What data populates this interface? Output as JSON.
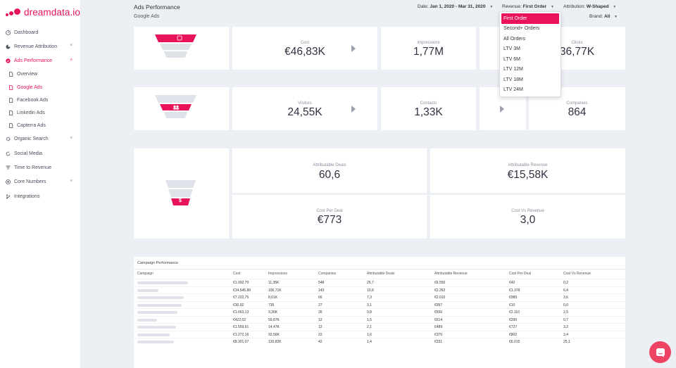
{
  "brand": {
    "name": "dreamdata.io",
    "color": "#e8135b"
  },
  "sidebar": {
    "items": [
      {
        "label": "Dashboard",
        "icon": "gauge-icon",
        "level": 0
      },
      {
        "label": "Revenue Attribution",
        "icon": "pie-icon",
        "level": 0,
        "chevron": "˅"
      },
      {
        "label": "Ads Performance",
        "icon": "check-circle-icon",
        "level": 0,
        "chevron": "˄",
        "active": true
      },
      {
        "label": "Overview",
        "icon": "page-icon",
        "level": 1
      },
      {
        "label": "Google Ads",
        "icon": "page-icon",
        "level": 1,
        "active": true
      },
      {
        "label": "Facebook Ads",
        "icon": "page-icon",
        "level": 1
      },
      {
        "label": "Linkedin Ads",
        "icon": "page-icon",
        "level": 1
      },
      {
        "label": "Capterra Ads",
        "icon": "page-icon",
        "level": 1
      },
      {
        "label": "Organic Search",
        "icon": "gear-icon",
        "level": 0,
        "chevron": "˅"
      },
      {
        "label": "Social Media",
        "icon": "refresh-icon",
        "level": 0
      },
      {
        "label": "Time to Revenue",
        "icon": "filter-icon",
        "level": 0
      },
      {
        "label": "Core Numbers",
        "icon": "target-icon",
        "level": 0,
        "chevron": "˅"
      },
      {
        "label": "Integrations",
        "icon": "branch-icon",
        "level": 0
      }
    ]
  },
  "header": {
    "title": "Ads Performance",
    "subtitle": "Google Ads",
    "date_label": "Date:",
    "date_value": "Jan 1, 2020 - Mar 31, 2020",
    "revenue_label": "Revenue:",
    "revenue_value": "First Order",
    "attribution_label": "Attribution:",
    "attribution_value": "W-Shaped",
    "brand_label": "Brand:",
    "brand_value": "All",
    "caret": "▼"
  },
  "revenue_dropdown": {
    "options": [
      "First Order",
      "Second+ Orders",
      "All Orders",
      "LTV 3M",
      "LTV 6M",
      "LTV 12M",
      "LTV 18M",
      "LTV 24M"
    ],
    "selected": "First Order"
  },
  "funnel1": {
    "cost_label": "Cost",
    "cost_value": "€46,83K",
    "impressions_label": "Impressions",
    "impressions_value": "1,77M",
    "clicks_label": "Clicks",
    "clicks_value": "36,77K"
  },
  "funnel2": {
    "visitors_label": "Visitors",
    "visitors_value": "24,55K",
    "contacts_label": "Contacts",
    "contacts_value": "1,33K",
    "companies_label": "Companies",
    "companies_value": "864"
  },
  "funnel3": {
    "deals_label": "Attributable Deals",
    "deals_value": "60,6",
    "revenue_label": "Attributable Revenue",
    "revenue_value": "€15,58K",
    "cost_per_deal_label": "Cost Per Deal",
    "cost_per_deal_value": "€773",
    "cost_vs_revenue_label": "Cost Vs Revenue",
    "cost_vs_revenue_value": "3,0",
    "dollar_glyph": "$"
  },
  "campaign_table": {
    "title": "Campaign Performance",
    "columns": [
      "Campaign",
      "Cost",
      "Impressions",
      "Companies",
      "Attributable Deals",
      "Attributable Revenue",
      "Cost Per Deal",
      "Cost Vs Revenue"
    ],
    "rows": [
      [
        "€1.092,70",
        "11,35K",
        "548",
        "25,7",
        "€6.550",
        "€42",
        "0,2"
      ],
      [
        "€14.545,89",
        "100,71K",
        "143",
        "10,6",
        "€2.262",
        "€1.378",
        "6,4"
      ],
      [
        "€7.222,75",
        "8,61K",
        "66",
        "7,3",
        "€2.010",
        "€989",
        "3,6"
      ],
      [
        "€30,92",
        "735",
        "27",
        "3,1",
        "€957",
        "€10",
        "0,0"
      ],
      [
        "€1.653,13",
        "9,36K",
        "26",
        "0,8",
        "€656",
        "€2.110",
        "2,5"
      ],
      [
        "€422,02",
        "59,87K",
        "12",
        "1,5",
        "€614",
        "€290",
        "0,7"
      ],
      [
        "€1.559,61",
        "14,47K",
        "12",
        "2,1",
        "€489",
        "€727",
        "3,2"
      ],
      [
        "€1.272,16",
        "92,56K",
        "22",
        "1,6",
        "€370",
        "€802",
        "3,4"
      ],
      [
        "€8.301,07",
        "130,82K",
        "42",
        "1,4",
        "€331",
        "€6.015",
        "25,1"
      ]
    ]
  },
  "chat": {
    "icon": "chat-icon"
  }
}
